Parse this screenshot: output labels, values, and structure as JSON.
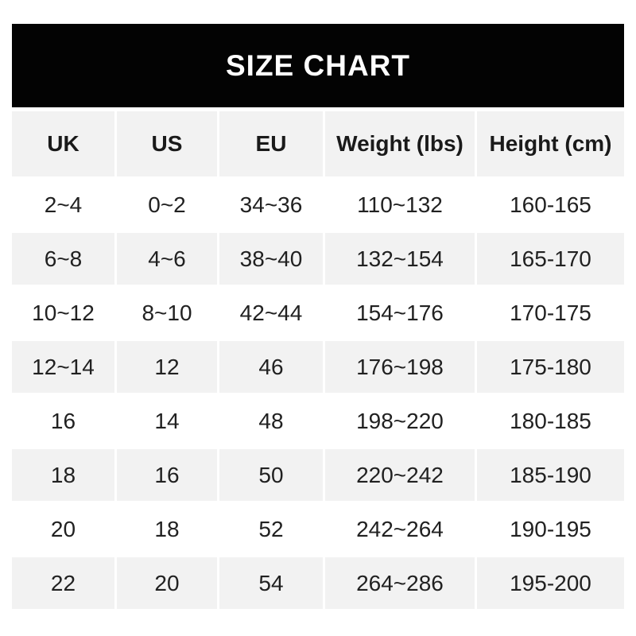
{
  "title": "SIZE CHART",
  "colors": {
    "banner_bg": "#030303",
    "banner_text": "#ffffff",
    "row_alt_bg": "#f2f2f2",
    "text": "#212121"
  },
  "chart_data": {
    "type": "table",
    "title": "SIZE CHART",
    "columns": [
      "UK",
      "US",
      "EU",
      "Weight (lbs)",
      "Height (cm)"
    ],
    "rows": [
      [
        "2~4",
        "0~2",
        "34~36",
        "110~132",
        "160-165"
      ],
      [
        "6~8",
        "4~6",
        "38~40",
        "132~154",
        "165-170"
      ],
      [
        "10~12",
        "8~10",
        "42~44",
        "154~176",
        "170-175"
      ],
      [
        "12~14",
        "12",
        "46",
        "176~198",
        "175-180"
      ],
      [
        "16",
        "14",
        "48",
        "198~220",
        "180-185"
      ],
      [
        "18",
        "16",
        "50",
        "220~242",
        "185-190"
      ],
      [
        "20",
        "18",
        "52",
        "242~264",
        "190-195"
      ],
      [
        "22",
        "20",
        "54",
        "264~286",
        "195-200"
      ]
    ]
  }
}
